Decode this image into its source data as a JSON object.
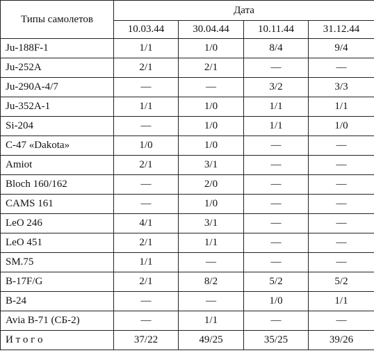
{
  "header": {
    "row_label": "Типы самолетов",
    "group": "Дата",
    "dates": [
      "10.03.44",
      "30.04.44",
      "10.11.44",
      "31.12.44"
    ]
  },
  "table": {
    "rows": [
      [
        "Ju-188F-1",
        "1/1",
        "1/0",
        "8/4",
        "9/4"
      ],
      [
        "Ju-252A",
        "2/1",
        "2/1",
        "—",
        "—"
      ],
      [
        "Ju-290A-4/7",
        "—",
        "—",
        "3/2",
        "3/3"
      ],
      [
        "Ju-352A-1",
        "1/1",
        "1/0",
        "1/1",
        "1/1"
      ],
      [
        "Si-204",
        "—",
        "1/0",
        "1/1",
        "1/0"
      ],
      [
        "C-47 «Dakota»",
        "1/0",
        "1/0",
        "—",
        "—"
      ],
      [
        "Amiot",
        "2/1",
        "3/1",
        "—",
        "—"
      ],
      [
        "Bloch 160/162",
        "—",
        "2/0",
        "—",
        "—"
      ],
      [
        "CAMS 161",
        "—",
        "1/0",
        "—",
        "—"
      ],
      [
        "LeO 246",
        "4/1",
        "3/1",
        "—",
        "—"
      ],
      [
        "LeO 451",
        "2/1",
        "1/1",
        "—",
        "—"
      ],
      [
        "SM.75",
        "1/1",
        "—",
        "—",
        "—"
      ],
      [
        "B-17F/G",
        "2/1",
        "8/2",
        "5/2",
        "5/2"
      ],
      [
        "B-24",
        "—",
        "—",
        "1/0",
        "1/1"
      ],
      [
        "Avia B-71 (СБ-2)",
        "—",
        "1/1",
        "—",
        "—"
      ],
      [
        "И т о г о",
        "37/22",
        "49/25",
        "35/25",
        "39/26"
      ]
    ]
  }
}
